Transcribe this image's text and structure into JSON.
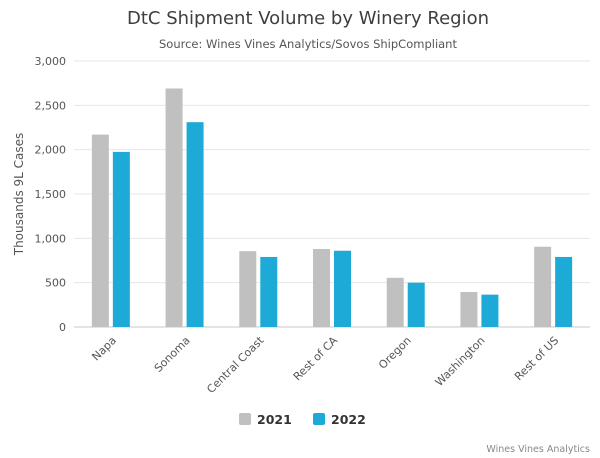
{
  "chart_data": {
    "type": "bar",
    "title": "DtC Shipment Volume by Winery Region",
    "subtitle": "Source: Wines Vines Analytics/Sovos ShipCompliant",
    "xlabel": "",
    "ylabel": "Thousands 9L Cases",
    "ylim": [
      0,
      3000
    ],
    "yticks": [
      0,
      500,
      1000,
      1500,
      2000,
      2500,
      3000
    ],
    "ytick_labels": [
      "0",
      "500",
      "1,000",
      "1,500",
      "2,000",
      "2,500",
      "3,000"
    ],
    "categories": [
      "Napa",
      "Sonoma",
      "Central Coast",
      "Rest of CA",
      "Oregon",
      "Washington",
      "Rest of US"
    ],
    "series": [
      {
        "name": "2021",
        "color": "#c0c0c0",
        "values": [
          2170,
          2690,
          855,
          880,
          555,
          395,
          905
        ]
      },
      {
        "name": "2022",
        "color": "#1eaad6",
        "values": [
          1975,
          2310,
          790,
          860,
          500,
          365,
          790
        ]
      }
    ],
    "legend_position": "bottom-center",
    "grid": true,
    "credit": "Wines Vines Analytics"
  }
}
